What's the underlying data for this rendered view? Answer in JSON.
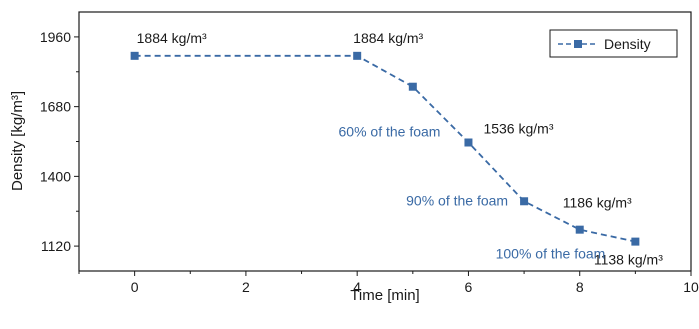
{
  "chart_data": {
    "type": "line",
    "xlabel": "Time [min]",
    "ylabel": "Density [kg/m³]",
    "xlim": [
      -1,
      10
    ],
    "ylim": [
      1020,
      2060
    ],
    "x_ticks": [
      0,
      2,
      4,
      6,
      8,
      10
    ],
    "y_ticks": [
      1120,
      1400,
      1680,
      1960
    ],
    "grid": false,
    "legend_position": "top-right",
    "series": [
      {
        "name": "Density",
        "x": [
          0,
          4,
          5,
          6,
          7,
          8,
          9
        ],
        "y": [
          1884,
          1884,
          1760,
          1536,
          1300,
          1186,
          1138
        ]
      }
    ],
    "data_labels": [
      {
        "x": 0,
        "y": 1884,
        "text": "1884 kg/m³"
      },
      {
        "x": 4,
        "y": 1884,
        "text": "1884 kg/m³"
      },
      {
        "x": 6,
        "y": 1536,
        "text": "1536 kg/m³"
      },
      {
        "x": 8,
        "y": 1186,
        "text": "1186 kg/m³"
      },
      {
        "x": 9,
        "y": 1138,
        "text": "1138 kg/m³"
      }
    ],
    "annotations": [
      {
        "text": "60% of the foam",
        "x": 6,
        "y": 1536
      },
      {
        "text": "90% of the foam",
        "x": 7,
        "y": 1300
      },
      {
        "text": "100% of the foam",
        "x": 9,
        "y": 1138
      }
    ],
    "colors": {
      "series": "#3a6aa5",
      "annotation": "#3a6aa5",
      "axis": "#1a1a1a"
    }
  }
}
